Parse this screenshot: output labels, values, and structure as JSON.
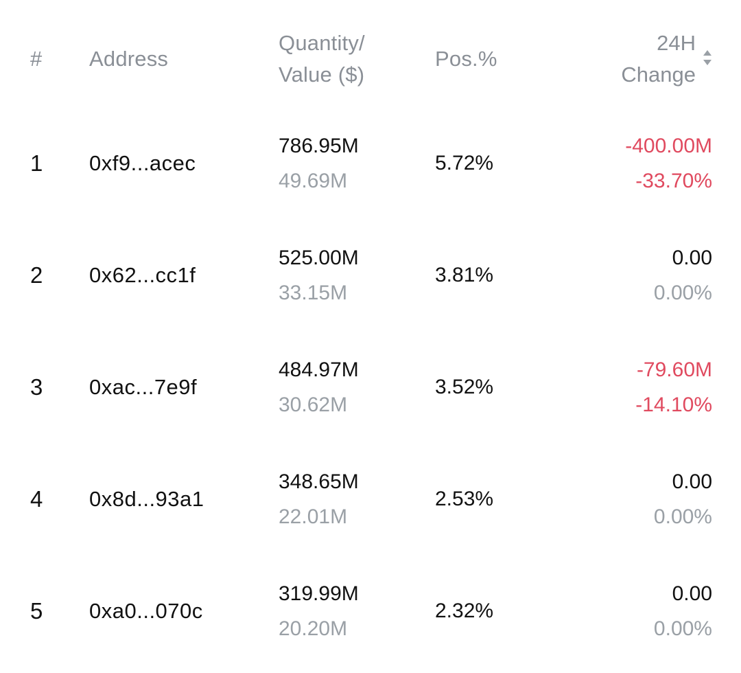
{
  "header": {
    "rank": "#",
    "address": "Address",
    "quantity_line1": "Quantity/",
    "quantity_line2": "Value ($)",
    "position": "Pos.%",
    "change_line1": "24H",
    "change_line2": "Change"
  },
  "colors": {
    "negative": "#e04a5f",
    "muted": "#9aa0a6",
    "text": "#111111"
  },
  "rows": [
    {
      "rank": "1",
      "address": "0xf9...acec",
      "quantity": "786.95M",
      "value": "49.69M",
      "position": "5.72%",
      "change": "-400.00M",
      "change_pct": "-33.70%",
      "trend": "negative"
    },
    {
      "rank": "2",
      "address": "0x62...cc1f",
      "quantity": "525.00M",
      "value": "33.15M",
      "position": "3.81%",
      "change": "0.00",
      "change_pct": "0.00%",
      "trend": "neutral"
    },
    {
      "rank": "3",
      "address": "0xac...7e9f",
      "quantity": "484.97M",
      "value": "30.62M",
      "position": "3.52%",
      "change": "-79.60M",
      "change_pct": "-14.10%",
      "trend": "negative"
    },
    {
      "rank": "4",
      "address": "0x8d...93a1",
      "quantity": "348.65M",
      "value": "22.01M",
      "position": "2.53%",
      "change": "0.00",
      "change_pct": "0.00%",
      "trend": "neutral"
    },
    {
      "rank": "5",
      "address": "0xa0...070c",
      "quantity": "319.99M",
      "value": "20.20M",
      "position": "2.32%",
      "change": "0.00",
      "change_pct": "0.00%",
      "trend": "neutral"
    }
  ],
  "icons": {
    "sort": "sort-toggle-icon"
  }
}
